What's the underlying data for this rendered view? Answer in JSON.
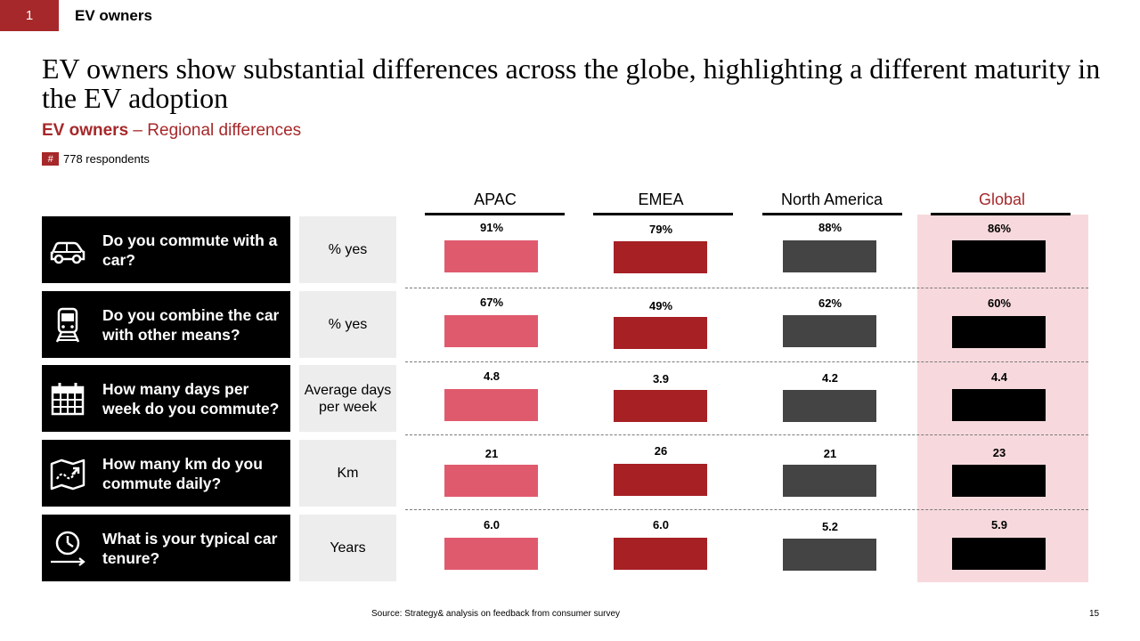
{
  "section": {
    "number": "1",
    "title": "EV owners"
  },
  "headline": "EV owners show substantial differences across the globe, highlighting a different maturity in the EV adoption",
  "subtitle": {
    "bold": "EV owners",
    "rest": " – Regional differences"
  },
  "sample": {
    "symbol": "#",
    "text": "778 respondents"
  },
  "footer": {
    "source": "Source: Strategy& analysis on feedback from consumer survey",
    "page": "15"
  },
  "questions": [
    {
      "text": "Do you commute with a car?",
      "icon": "car-icon",
      "metric": "% yes"
    },
    {
      "text": "Do you combine the car with other means?",
      "icon": "train-icon",
      "metric": "% yes"
    },
    {
      "text": "How many days per week do you commute?",
      "icon": "calendar-icon",
      "metric": "Average days per week"
    },
    {
      "text": "How many km do you commute daily?",
      "icon": "map-route-icon",
      "metric": "Km"
    },
    {
      "text": "What is your typical car tenure?",
      "icon": "clock-arrow-icon",
      "metric": "Years"
    }
  ],
  "colors": {
    "APAC": "#e05a6e",
    "EMEA": "#a62024",
    "North America": "#444444",
    "Global": "#000000",
    "accent": "#a6282a",
    "global_highlight": "#f7d9dd"
  },
  "chart_data": {
    "type": "bar",
    "categories": [
      "APAC",
      "EMEA",
      "North America",
      "Global"
    ],
    "rows": [
      {
        "labels": [
          "91%",
          "79%",
          "88%",
          "86%"
        ],
        "values": [
          91,
          79,
          88,
          86
        ]
      },
      {
        "labels": [
          "67%",
          "49%",
          "62%",
          "60%"
        ],
        "values": [
          67,
          49,
          62,
          60
        ]
      },
      {
        "labels": [
          "4.8",
          "3.9",
          "4.2",
          "4.4"
        ],
        "values": [
          4.8,
          3.9,
          4.2,
          4.4
        ]
      },
      {
        "labels": [
          "21",
          "26",
          "21",
          "23"
        ],
        "values": [
          21,
          26,
          21,
          23
        ]
      },
      {
        "labels": [
          "6.0",
          "6.0",
          "5.2",
          "5.9"
        ],
        "values": [
          6.0,
          6.0,
          5.2,
          5.9
        ]
      }
    ]
  }
}
